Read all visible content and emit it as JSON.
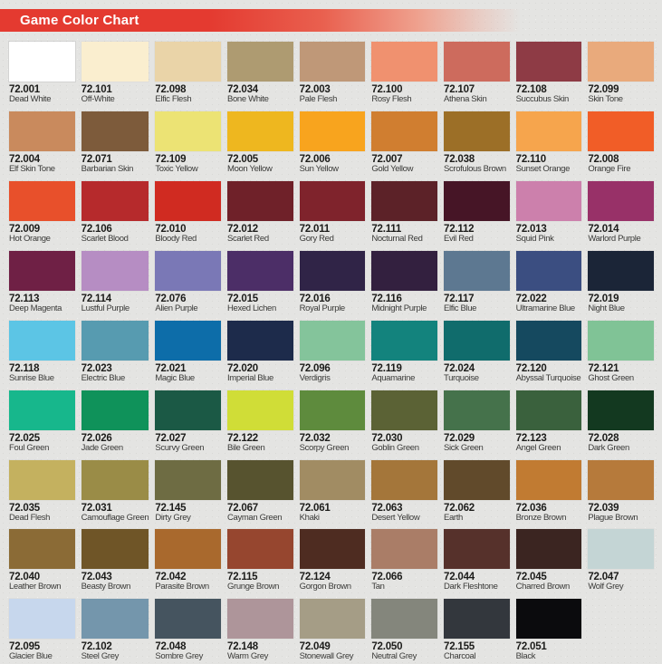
{
  "header": {
    "title": "Game Color Chart",
    "banner_color": "#e43a30",
    "banner_wedge_color": "#bb2a20",
    "title_color": "#ffffff"
  },
  "page": {
    "background_color": "#e4e4e2",
    "columns": 9,
    "rows": 9
  },
  "swatches": [
    {
      "code": "72.001",
      "name": "Dead White",
      "color": "#ffffff"
    },
    {
      "code": "72.101",
      "name": "Off-White",
      "color": "#faeecf"
    },
    {
      "code": "72.098",
      "name": "Elfic Flesh",
      "color": "#ead4a8"
    },
    {
      "code": "72.034",
      "name": "Bone White",
      "color": "#ae9b71"
    },
    {
      "code": "72.003",
      "name": "Pale Flesh",
      "color": "#bf9878"
    },
    {
      "code": "72.100",
      "name": "Rosy Flesh",
      "color": "#f0916f"
    },
    {
      "code": "72.107",
      "name": "Athena Skin",
      "color": "#cd6b5d"
    },
    {
      "code": "72.108",
      "name": "Succubus Skin",
      "color": "#8e3b45"
    },
    {
      "code": "72.099",
      "name": "Skin Tone",
      "color": "#e9aa7c"
    },
    {
      "code": "72.004",
      "name": "Elf Skin Tone",
      "color": "#c98a5d"
    },
    {
      "code": "72.071",
      "name": "Barbarian Skin",
      "color": "#7d5b3b"
    },
    {
      "code": "72.109",
      "name": "Toxic Yellow",
      "color": "#ece374"
    },
    {
      "code": "72.005",
      "name": "Moon Yellow",
      "color": "#eeb71f"
    },
    {
      "code": "72.006",
      "name": "Sun Yellow",
      "color": "#f8a41e"
    },
    {
      "code": "72.007",
      "name": "Gold Yellow",
      "color": "#d07e30"
    },
    {
      "code": "72.038",
      "name": "Scrofulous Brown",
      "color": "#9c6f27"
    },
    {
      "code": "72.110",
      "name": "Sunset Orange",
      "color": "#f6a54d"
    },
    {
      "code": "72.008",
      "name": "Orange Fire",
      "color": "#f15d27"
    },
    {
      "code": "72.009",
      "name": "Hot Orange",
      "color": "#e8502b"
    },
    {
      "code": "72.106",
      "name": "Scarlet Blood",
      "color": "#b62a2c"
    },
    {
      "code": "72.010",
      "name": "Bloody Red",
      "color": "#d02b21"
    },
    {
      "code": "72.012",
      "name": "Scarlet Red",
      "color": "#6f2129"
    },
    {
      "code": "72.011",
      "name": "Gory Red",
      "color": "#7f232c"
    },
    {
      "code": "72.111",
      "name": "Nocturnal Red",
      "color": "#5c2228"
    },
    {
      "code": "72.112",
      "name": "Evil Red",
      "color": "#461526"
    },
    {
      "code": "72.013",
      "name": "Squid Pink",
      "color": "#cc80ac"
    },
    {
      "code": "72.014",
      "name": "Warlord Purple",
      "color": "#983168"
    },
    {
      "code": "72.113",
      "name": "Deep Magenta",
      "color": "#6f2045"
    },
    {
      "code": "72.114",
      "name": "Lustful Purple",
      "color": "#b68dc3"
    },
    {
      "code": "72.076",
      "name": "Alien Purple",
      "color": "#7a78b6"
    },
    {
      "code": "72.015",
      "name": "Hexed Lichen",
      "color": "#4c2e67"
    },
    {
      "code": "72.016",
      "name": "Royal Purple",
      "color": "#302447"
    },
    {
      "code": "72.116",
      "name": "Midnight Purple",
      "color": "#33203f"
    },
    {
      "code": "72.117",
      "name": "Elfic Blue",
      "color": "#5d7891"
    },
    {
      "code": "72.022",
      "name": "Ultramarine Blue",
      "color": "#3b4e81"
    },
    {
      "code": "72.019",
      "name": "Night Blue",
      "color": "#1b2537"
    },
    {
      "code": "72.118",
      "name": "Sunrise Blue",
      "color": "#5cc5e5"
    },
    {
      "code": "72.023",
      "name": "Electric Blue",
      "color": "#579bb0"
    },
    {
      "code": "72.021",
      "name": "Magic Blue",
      "color": "#0d6da9"
    },
    {
      "code": "72.020",
      "name": "Imperial Blue",
      "color": "#1d2b4b"
    },
    {
      "code": "72.096",
      "name": "Verdigris",
      "color": "#84c49b"
    },
    {
      "code": "72.119",
      "name": "Aquamarine",
      "color": "#13837d"
    },
    {
      "code": "72.024",
      "name": "Turquoise",
      "color": "#106c6c"
    },
    {
      "code": "72.120",
      "name": "Abyssal Turquoise",
      "color": "#15495f"
    },
    {
      "code": "72.121",
      "name": "Ghost Green",
      "color": "#80c396"
    },
    {
      "code": "72.025",
      "name": "Foul Green",
      "color": "#17b78c"
    },
    {
      "code": "72.026",
      "name": "Jade Green",
      "color": "#0f925a"
    },
    {
      "code": "72.027",
      "name": "Scurvy Green",
      "color": "#1b5945"
    },
    {
      "code": "72.122",
      "name": "Bile Green",
      "color": "#d0dd37"
    },
    {
      "code": "72.032",
      "name": "Scorpy Green",
      "color": "#5e8b3d"
    },
    {
      "code": "72.030",
      "name": "Goblin Green",
      "color": "#5b6235"
    },
    {
      "code": "72.029",
      "name": "Sick Green",
      "color": "#45724b"
    },
    {
      "code": "72.123",
      "name": "Angel Green",
      "color": "#3a613d"
    },
    {
      "code": "72.028",
      "name": "Dark Green",
      "color": "#133920"
    },
    {
      "code": "72.035",
      "name": "Dead Flesh",
      "color": "#c4b15f"
    },
    {
      "code": "72.031",
      "name": "Camouflage Green",
      "color": "#9a8c47"
    },
    {
      "code": "72.145",
      "name": "Dirty Grey",
      "color": "#6e6c43"
    },
    {
      "code": "72.067",
      "name": "Cayman Green",
      "color": "#57532f"
    },
    {
      "code": "72.061",
      "name": "Khaki",
      "color": "#a18c63"
    },
    {
      "code": "72.063",
      "name": "Desert Yellow",
      "color": "#a4763a"
    },
    {
      "code": "72.062",
      "name": "Earth",
      "color": "#614a2b"
    },
    {
      "code": "72.036",
      "name": "Bronze Brown",
      "color": "#c17b32"
    },
    {
      "code": "72.039",
      "name": "Plague Brown",
      "color": "#b67a3b"
    },
    {
      "code": "72.040",
      "name": "Leather Brown",
      "color": "#8b6b36"
    },
    {
      "code": "72.043",
      "name": "Beasty Brown",
      "color": "#6f5527"
    },
    {
      "code": "72.042",
      "name": "Parasite Brown",
      "color": "#a9692d"
    },
    {
      "code": "72.115",
      "name": "Grunge Brown",
      "color": "#96462f"
    },
    {
      "code": "72.124",
      "name": "Gorgon Brown",
      "color": "#4e2c21"
    },
    {
      "code": "72.066",
      "name": "Tan",
      "color": "#aa7d67"
    },
    {
      "code": "72.044",
      "name": "Dark Fleshtone",
      "color": "#56312b"
    },
    {
      "code": "72.045",
      "name": "Charred Brown",
      "color": "#3b2521"
    },
    {
      "code": "72.047",
      "name": "Wolf Grey",
      "color": "#c4d5d5"
    },
    {
      "code": "72.095",
      "name": "Glacier Blue",
      "color": "#c7d7ed"
    },
    {
      "code": "72.102",
      "name": "Steel Grey",
      "color": "#7496ac"
    },
    {
      "code": "72.048",
      "name": "Sombre Grey",
      "color": "#45545f"
    },
    {
      "code": "72.148",
      "name": "Warm Grey",
      "color": "#ae959a"
    },
    {
      "code": "72.049",
      "name": "Stonewall Grey",
      "color": "#a59d86"
    },
    {
      "code": "72.050",
      "name": "Neutral Grey",
      "color": "#84867c"
    },
    {
      "code": "72.155",
      "name": "Charcoal",
      "color": "#33373d"
    },
    {
      "code": "72.051",
      "name": "Black",
      "color": "#0b0b0d"
    }
  ]
}
